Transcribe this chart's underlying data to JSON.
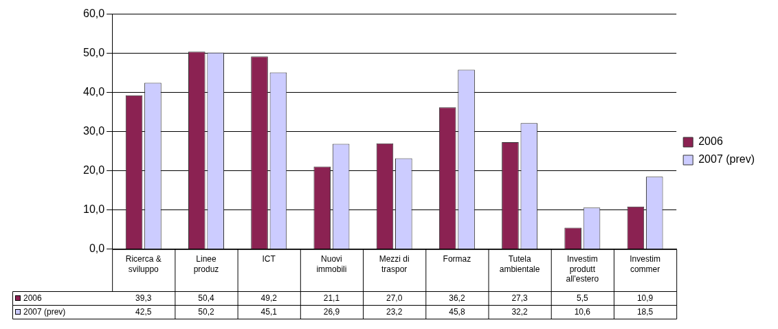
{
  "chart_data": {
    "type": "bar",
    "categories": [
      "Ricerca & sviluppo",
      "Linee produz",
      "ICT",
      "Nuovi immobili",
      "Mezzi di traspor",
      "Formaz",
      "Tutela ambientale",
      "Investim produtt all'estero",
      "Investim commer"
    ],
    "series": [
      {
        "name": "2006",
        "color": "#8b2252",
        "values": [
          39.3,
          50.4,
          49.2,
          21.1,
          27.0,
          36.2,
          27.3,
          5.5,
          10.9
        ],
        "value_labels": [
          "39,3",
          "50,4",
          "49,2",
          "21,1",
          "27,0",
          "36,2",
          "27,3",
          "5,5",
          "10,9"
        ]
      },
      {
        "name": "2007 (prev)",
        "color": "#ccccff",
        "values": [
          42.5,
          50.2,
          45.1,
          26.9,
          23.2,
          45.8,
          32.2,
          10.6,
          18.5
        ],
        "value_labels": [
          "42,5",
          "50,2",
          "45,1",
          "26,9",
          "23,2",
          "45,8",
          "32,2",
          "10,6",
          "18,5"
        ]
      }
    ],
    "ylim": [
      0,
      60
    ],
    "yticks": [
      {
        "value": 0,
        "label": "0,0"
      },
      {
        "value": 10,
        "label": "10,0"
      },
      {
        "value": 20,
        "label": "20,0"
      },
      {
        "value": 30,
        "label": "30,0"
      },
      {
        "value": 40,
        "label": "40,0"
      },
      {
        "value": 50,
        "label": "50,0"
      },
      {
        "value": 60,
        "label": "60,0"
      }
    ],
    "grid": "y",
    "legend": "right"
  }
}
